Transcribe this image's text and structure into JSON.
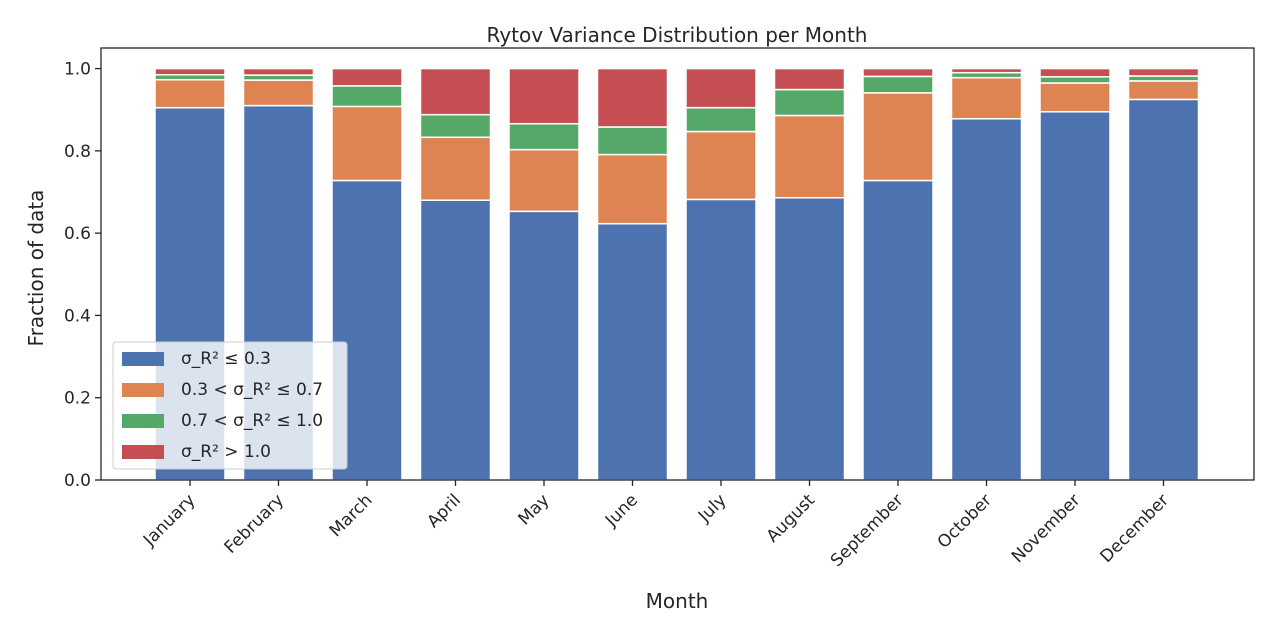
{
  "chart_data": {
    "type": "bar",
    "stacked": true,
    "title": "Rytov Variance Distribution per Month",
    "xlabel": "Month",
    "ylabel": "Fraction of data",
    "ylim": [
      0,
      1.05
    ],
    "yticks": [
      "0.0",
      "0.2",
      "0.4",
      "0.6",
      "0.8",
      "1.0"
    ],
    "grid": false,
    "legend_position": "lower-left",
    "categories": [
      "January",
      "February",
      "March",
      "April",
      "May",
      "June",
      "July",
      "August",
      "September",
      "October",
      "November",
      "December"
    ],
    "series": [
      {
        "name": "σ_R² ≤ 0.3",
        "color": "#4c72b0",
        "values": [
          0.905,
          0.91,
          0.728,
          0.68,
          0.653,
          0.623,
          0.682,
          0.686,
          0.728,
          0.878,
          0.895,
          0.925
        ]
      },
      {
        "name": "0.3 < σ_R² ≤ 0.7",
        "color": "#dd8452",
        "values": [
          0.068,
          0.062,
          0.18,
          0.153,
          0.15,
          0.168,
          0.165,
          0.2,
          0.213,
          0.1,
          0.07,
          0.045
        ]
      },
      {
        "name": "0.7 < σ_R² ≤ 1.0",
        "color": "#55a868",
        "values": [
          0.012,
          0.012,
          0.05,
          0.055,
          0.063,
          0.067,
          0.058,
          0.063,
          0.04,
          0.012,
          0.015,
          0.012
        ]
      },
      {
        "name": "σ_R² > 1.0",
        "color": "#c44e52",
        "values": [
          0.015,
          0.016,
          0.042,
          0.112,
          0.134,
          0.142,
          0.095,
          0.051,
          0.019,
          0.01,
          0.02,
          0.018
        ]
      }
    ]
  }
}
